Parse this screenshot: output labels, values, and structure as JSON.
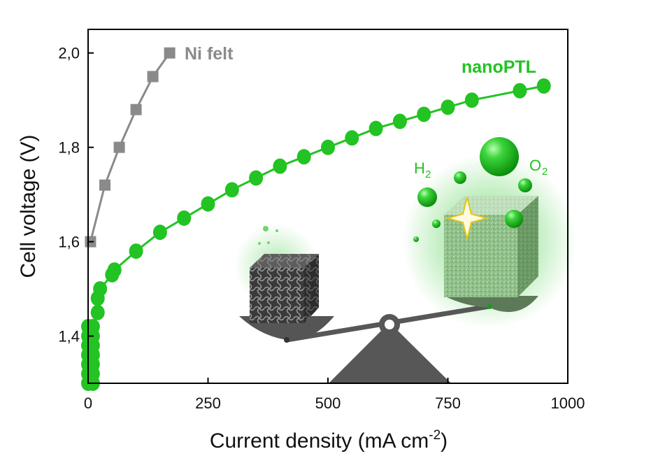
{
  "chart_data": {
    "type": "scatter",
    "xlabel": "Current density (mA cm",
    "xlabel_sup": "-2",
    "xlabel_end": ")",
    "ylabel": "Cell voltage (V)",
    "xlim": [
      0,
      1000
    ],
    "ylim": [
      1.3,
      2.05
    ],
    "x_ticks": [
      {
        "value": 0,
        "label": "0"
      },
      {
        "value": 250,
        "label": "250"
      },
      {
        "value": 500,
        "label": "500"
      },
      {
        "value": 750,
        "label": "750"
      },
      {
        "value": 1000,
        "label": "1000"
      }
    ],
    "y_ticks": [
      {
        "value": 1.4,
        "label": "1,4"
      },
      {
        "value": 1.6,
        "label": "1,6"
      },
      {
        "value": 1.8,
        "label": "1,8"
      },
      {
        "value": 2.0,
        "label": "2,0"
      }
    ],
    "grid": false,
    "series": [
      {
        "name": "Ni felt",
        "marker": "square",
        "color": "#8a8a8a",
        "points": [
          {
            "x": 5,
            "y": 1.6
          },
          {
            "x": 35,
            "y": 1.72
          },
          {
            "x": 65,
            "y": 1.8
          },
          {
            "x": 100,
            "y": 1.88
          },
          {
            "x": 135,
            "y": 1.95
          },
          {
            "x": 170,
            "y": 2.0
          }
        ]
      },
      {
        "name": "nanoPTL",
        "marker": "circle",
        "color": "#22c322",
        "points": [
          {
            "x": 0,
            "y": 1.3
          },
          {
            "x": 0,
            "y": 1.32
          },
          {
            "x": 0,
            "y": 1.34
          },
          {
            "x": 0,
            "y": 1.36
          },
          {
            "x": 0,
            "y": 1.38
          },
          {
            "x": 0,
            "y": 1.4
          },
          {
            "x": 0,
            "y": 1.42
          },
          {
            "x": 10,
            "y": 1.3
          },
          {
            "x": 10,
            "y": 1.32
          },
          {
            "x": 10,
            "y": 1.34
          },
          {
            "x": 10,
            "y": 1.36
          },
          {
            "x": 10,
            "y": 1.38
          },
          {
            "x": 10,
            "y": 1.4
          },
          {
            "x": 10,
            "y": 1.42
          },
          {
            "x": 20,
            "y": 1.45
          },
          {
            "x": 20,
            "y": 1.48
          },
          {
            "x": 25,
            "y": 1.5
          },
          {
            "x": 50,
            "y": 1.53
          },
          {
            "x": 55,
            "y": 1.54
          },
          {
            "x": 100,
            "y": 1.58
          },
          {
            "x": 150,
            "y": 1.62
          },
          {
            "x": 200,
            "y": 1.65
          },
          {
            "x": 250,
            "y": 1.68
          },
          {
            "x": 300,
            "y": 1.71
          },
          {
            "x": 350,
            "y": 1.735
          },
          {
            "x": 400,
            "y": 1.76
          },
          {
            "x": 450,
            "y": 1.78
          },
          {
            "x": 500,
            "y": 1.8
          },
          {
            "x": 550,
            "y": 1.82
          },
          {
            "x": 600,
            "y": 1.84
          },
          {
            "x": 650,
            "y": 1.855
          },
          {
            "x": 700,
            "y": 1.87
          },
          {
            "x": 750,
            "y": 1.885
          },
          {
            "x": 800,
            "y": 1.9
          },
          {
            "x": 900,
            "y": 1.92
          },
          {
            "x": 950,
            "y": 1.93
          }
        ]
      }
    ],
    "annotations": [
      {
        "text": "H",
        "sub": "2",
        "color": "#22c322"
      },
      {
        "text": "O",
        "sub": "2",
        "color": "#22c322"
      }
    ],
    "illustration": {
      "items": [
        "porous-cube-icon",
        "nanoptl-cube-icon",
        "balance-scale-icon",
        "gas-bubbles-icon",
        "sparkle-icon"
      ],
      "glow_color": "#22c322",
      "scale_color": "#555555"
    }
  }
}
